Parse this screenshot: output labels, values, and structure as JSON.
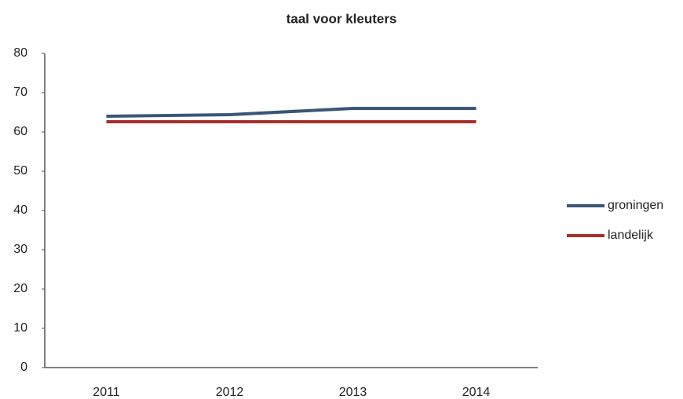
{
  "chart_data": {
    "type": "line",
    "title": "taal voor kleuters",
    "categories": [
      "2011",
      "2012",
      "2013",
      "2014"
    ],
    "series": [
      {
        "name": "groningen",
        "color": "#3b5676",
        "values": [
          64,
          64.4,
          66,
          66
        ]
      },
      {
        "name": "landelijk",
        "color": "#a5302b",
        "values": [
          62.6,
          62.6,
          62.6,
          62.6
        ]
      }
    ],
    "ylim": [
      0,
      80
    ],
    "yticks": [
      0,
      10,
      20,
      30,
      40,
      50,
      60,
      70,
      80
    ],
    "grid": false,
    "legend": "right"
  }
}
